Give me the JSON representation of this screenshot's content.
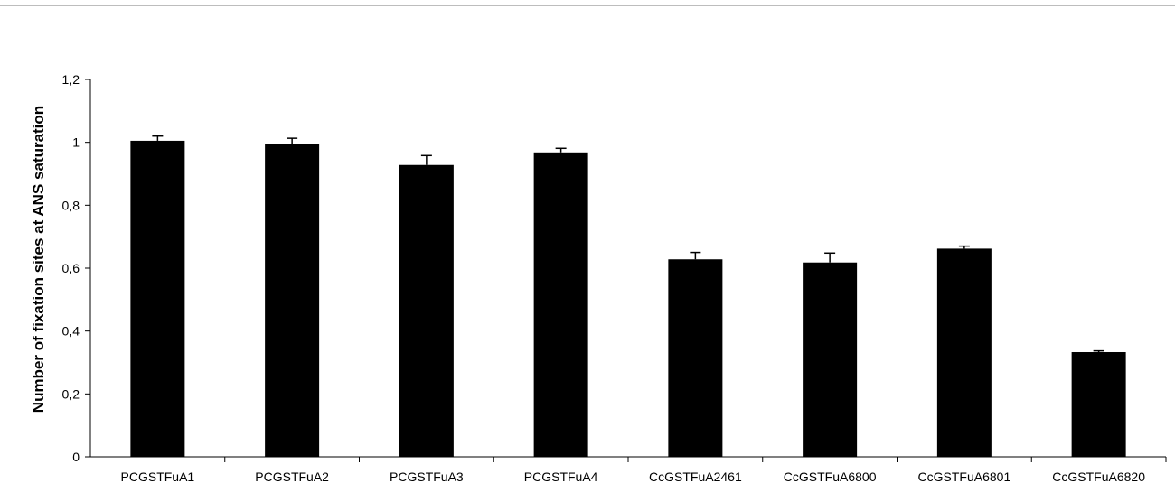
{
  "chart_data": {
    "type": "bar",
    "title": "",
    "xlabel": "",
    "ylabel": "Number of fixation sites at ANS saturation",
    "ylim": [
      0,
      1.2
    ],
    "y_ticks": [
      "0",
      "0,2",
      "0,4",
      "0,6",
      "0,8",
      "1",
      "1,2"
    ],
    "grid": false,
    "legend": "none",
    "bar_color": "#000000",
    "categories": [
      "PCGSTFuA1",
      "PCGSTFuA2",
      "PCGSTFuA3",
      "PCGSTFuA4",
      "CcGSTFuA2461",
      "CcGSTFuA6800",
      "CcGSTFuA6801",
      "CcGSTFuA6820"
    ],
    "values": [
      1.005,
      0.995,
      0.928,
      0.968,
      0.628,
      0.618,
      0.662,
      0.333
    ],
    "errors": [
      0.015,
      0.018,
      0.03,
      0.013,
      0.022,
      0.03,
      0.008,
      0.004
    ]
  }
}
